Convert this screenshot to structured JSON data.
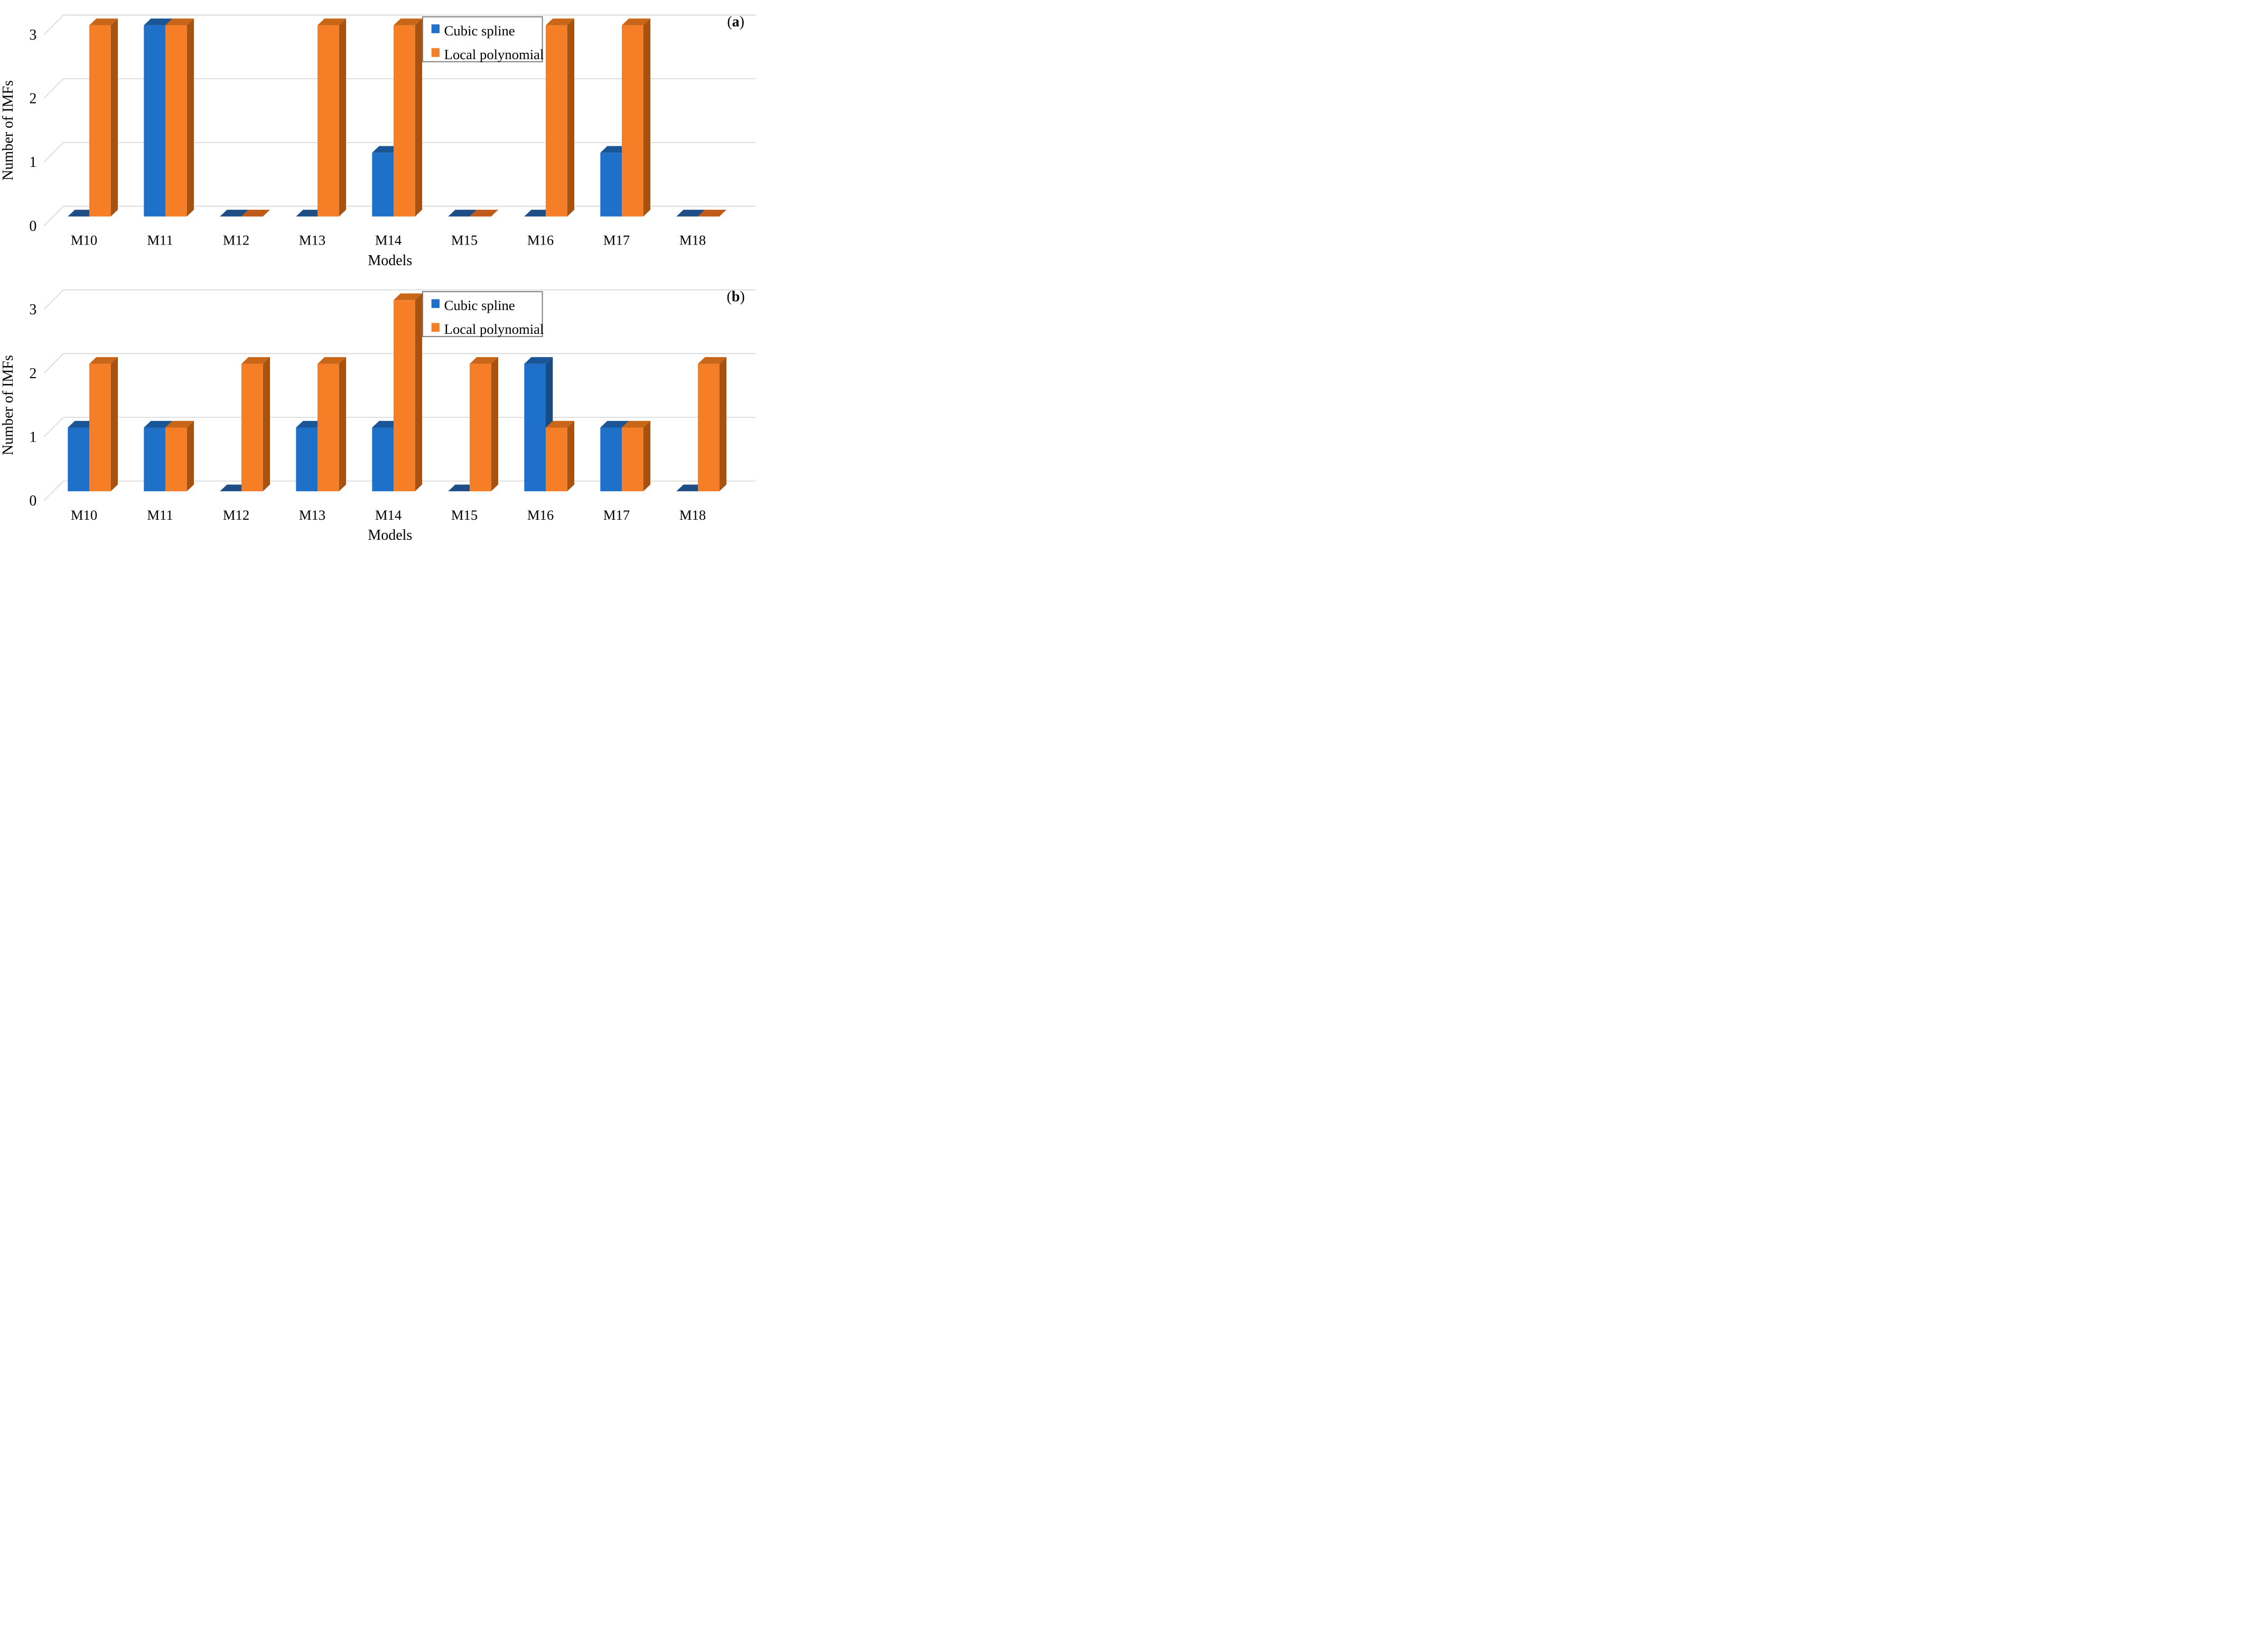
{
  "figure": {
    "background": "#ffffff",
    "panel_count": 2
  },
  "chart_data": [
    {
      "type": "bar",
      "style": "3d-column",
      "panel_label": "a",
      "panel_label_display": "(a)",
      "categories": [
        "M10",
        "M11",
        "M12",
        "M13",
        "M14",
        "M15",
        "M16",
        "M17",
        "M18"
      ],
      "series": [
        {
          "name": "Cubic spline",
          "values": [
            0,
            3,
            0,
            0,
            1,
            0,
            0,
            1,
            0
          ],
          "color": "#1F70C8",
          "color_top": "#1A5696",
          "color_side": "#174B84",
          "color_zero_tile": "#1F4E87"
        },
        {
          "name": "Local polynomial",
          "values": [
            3,
            3,
            0,
            3,
            3,
            0,
            3,
            3,
            0
          ],
          "color": "#F57E27",
          "color_top": "#C8661A",
          "color_side": "#A85212",
          "color_zero_tile": "#C05A18"
        }
      ],
      "xlabel": "Models",
      "ylabel": "Number of IMFs",
      "yticks": [
        0,
        1,
        2,
        3
      ],
      "ylim": [
        0,
        3
      ],
      "grid": true,
      "gridline_color": "#D8D8D8",
      "legend_position": "top-center",
      "legend_border_color": "#7F7F7F",
      "legend_fill": "#FFFFFF",
      "text_color": "#000000"
    },
    {
      "type": "bar",
      "style": "3d-column",
      "panel_label": "b",
      "panel_label_display": "(b)",
      "categories": [
        "M10",
        "M11",
        "M12",
        "M13",
        "M14",
        "M15",
        "M16",
        "M17",
        "M18"
      ],
      "series": [
        {
          "name": "Cubic spline",
          "values": [
            1,
            1,
            0,
            1,
            1,
            0,
            2,
            1,
            0
          ],
          "color": "#1F70C8",
          "color_top": "#1A5696",
          "color_side": "#174B84",
          "color_zero_tile": "#1F4E87"
        },
        {
          "name": "Local polynomial",
          "values": [
            2,
            1,
            2,
            2,
            3,
            2,
            1,
            1,
            2
          ],
          "color": "#F57E27",
          "color_top": "#C8661A",
          "color_side": "#A85212",
          "color_zero_tile": "#C05A18"
        }
      ],
      "xlabel": "Models",
      "ylabel": "Number of IMFs",
      "yticks": [
        0,
        1,
        2,
        3
      ],
      "ylim": [
        0,
        3
      ],
      "grid": true,
      "gridline_color": "#D8D8D8",
      "legend_position": "top-center",
      "legend_border_color": "#7F7F7F",
      "legend_fill": "#FFFFFF",
      "text_color": "#000000"
    }
  ]
}
